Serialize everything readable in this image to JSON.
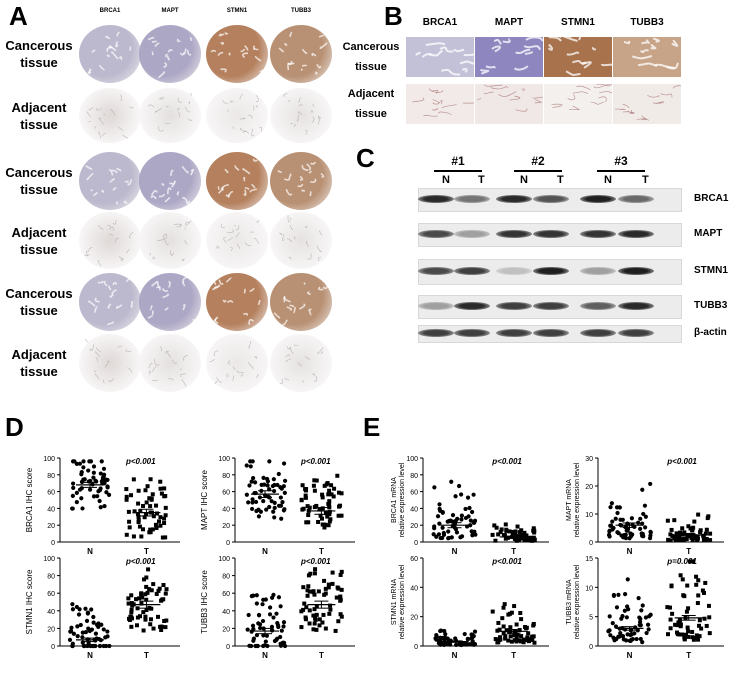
{
  "panelA": {
    "letter": "A",
    "columns": [
      "BRCA1",
      "MAPT",
      "STMN1",
      "TUBB3"
    ],
    "rows": [
      {
        "line1": "Cancerous",
        "line2": "tissue"
      },
      {
        "line1": "Adjacent",
        "line2": "tissue"
      },
      {
        "line1": "Cancerous",
        "line2": "tissue"
      },
      {
        "line1": "Adjacent",
        "line2": "tissue"
      },
      {
        "line1": "Cancerous",
        "line2": "tissue"
      },
      {
        "line1": "Adjacent",
        "line2": "tissue"
      }
    ],
    "stain_colors": {
      "cancer": [
        "#b9b6cc",
        "#a9a3c3",
        "#b17a55",
        "#b58b6c"
      ],
      "adjacent": [
        "#d9d2d0",
        "#e0dbdb",
        "#e8e4e4",
        "#e2dddd"
      ]
    }
  },
  "panelB": {
    "letter": "B",
    "columns": [
      "BRCA1",
      "MAPT",
      "STMN1",
      "TUBB3"
    ],
    "rows": [
      {
        "line1": "Cancerous",
        "line2": "tissue"
      },
      {
        "line1": "Adjacent",
        "line2": "tissue"
      }
    ],
    "tile_colors": {
      "cancer": [
        "#c3c1d8",
        "#8d86bf",
        "#a7724c",
        "#c7a488"
      ],
      "adjacent": [
        "#f1eae8",
        "#efe8e6",
        "#f4f0ee",
        "#f1ebe8"
      ]
    }
  },
  "panelC": {
    "letter": "C",
    "groups": [
      "#1",
      "#2",
      "#3"
    ],
    "lanes": [
      "N",
      "T",
      "N",
      "T",
      "N",
      "T"
    ],
    "proteins": [
      "BRCA1",
      "MAPT",
      "STMN1",
      "TUBB3",
      "β-actin"
    ],
    "band_intensity": {
      "BRCA1": [
        0.9,
        0.55,
        0.9,
        0.7,
        0.95,
        0.6
      ],
      "MAPT": [
        0.75,
        0.35,
        0.85,
        0.85,
        0.85,
        0.9
      ],
      "STMN1": [
        0.75,
        0.8,
        0.2,
        0.95,
        0.35,
        0.95
      ],
      "TUBB3": [
        0.35,
        0.9,
        0.8,
        0.8,
        0.65,
        0.9
      ],
      "β-actin": [
        0.8,
        0.8,
        0.8,
        0.8,
        0.8,
        0.8
      ]
    }
  },
  "panelD": {
    "letter": "D",
    "charts": [
      {
        "id": "brca1-ihc",
        "ylabel": "BRCA1 IHC score",
        "pvalue": "p<0.001",
        "yticks": [
          0,
          20,
          40,
          60,
          80,
          100
        ],
        "ylim": [
          0,
          100
        ],
        "categories": [
          "N",
          "T"
        ],
        "mean": [
          68,
          35
        ],
        "sem": [
          3,
          4
        ]
      },
      {
        "id": "mapt-ihc",
        "ylabel": "MAPT IHC score",
        "pvalue": "p<0.001",
        "yticks": [
          0,
          20,
          40,
          60,
          80,
          100
        ],
        "ylim": [
          0,
          100
        ],
        "categories": [
          "N",
          "T"
        ],
        "mean": [
          57,
          37
        ],
        "sem": [
          4,
          4
        ]
      },
      {
        "id": "stmn1-ihc",
        "ylabel": "STMN1 IHC score",
        "pvalue": "p<0.001",
        "yticks": [
          0,
          20,
          40,
          60,
          80,
          100
        ],
        "ylim": [
          0,
          100
        ],
        "categories": [
          "N",
          "T"
        ],
        "mean": [
          7,
          47
        ],
        "sem": [
          2,
          4
        ]
      },
      {
        "id": "tubb3-ihc",
        "ylabel": "TUBB3 IHC score",
        "pvalue": "p<0.001",
        "yticks": [
          0,
          20,
          40,
          60,
          80,
          100
        ],
        "ylim": [
          0,
          100
        ],
        "categories": [
          "N",
          "T"
        ],
        "mean": [
          17,
          47
        ],
        "sem": [
          3,
          4
        ]
      }
    ]
  },
  "panelE": {
    "letter": "E",
    "charts": [
      {
        "id": "brca1-mrna",
        "ylabel1": "BRCA1 mRNA",
        "ylabel2": "relative expression level",
        "pvalue": "p<0.001",
        "yticks": [
          0,
          20,
          40,
          60,
          80,
          100
        ],
        "ylim": [
          0,
          100
        ],
        "categories": [
          "N",
          "T"
        ],
        "mean": [
          20,
          6
        ],
        "sem": [
          3,
          1
        ]
      },
      {
        "id": "mapt-mrna",
        "ylabel1": "MAPT mRNA",
        "ylabel2": "relative expression level",
        "pvalue": "p<0.001",
        "yticks": [
          0,
          10,
          20,
          30
        ],
        "ylim": [
          0,
          30
        ],
        "categories": [
          "N",
          "T"
        ],
        "mean": [
          6,
          2.5
        ],
        "sem": [
          0.8,
          0.4
        ]
      },
      {
        "id": "stmn1-mrna",
        "ylabel1": "STMN1 mRNA",
        "ylabel2": "relative expression level",
        "pvalue": "p<0.001",
        "yticks": [
          0,
          20,
          40,
          60
        ],
        "ylim": [
          0,
          60
        ],
        "categories": [
          "N",
          "T"
        ],
        "mean": [
          3,
          10
        ],
        "sem": [
          0.5,
          1.2
        ]
      },
      {
        "id": "tubb3-mrna",
        "ylabel1": "TUBB3 mRNA",
        "ylabel2": "relative expression level",
        "pvalue": "p=0.001",
        "yticks": [
          0,
          5,
          10,
          15
        ],
        "ylim": [
          0,
          15
        ],
        "categories": [
          "N",
          "T"
        ],
        "mean": [
          3,
          4.8
        ],
        "sem": [
          0.3,
          0.4
        ]
      }
    ]
  }
}
